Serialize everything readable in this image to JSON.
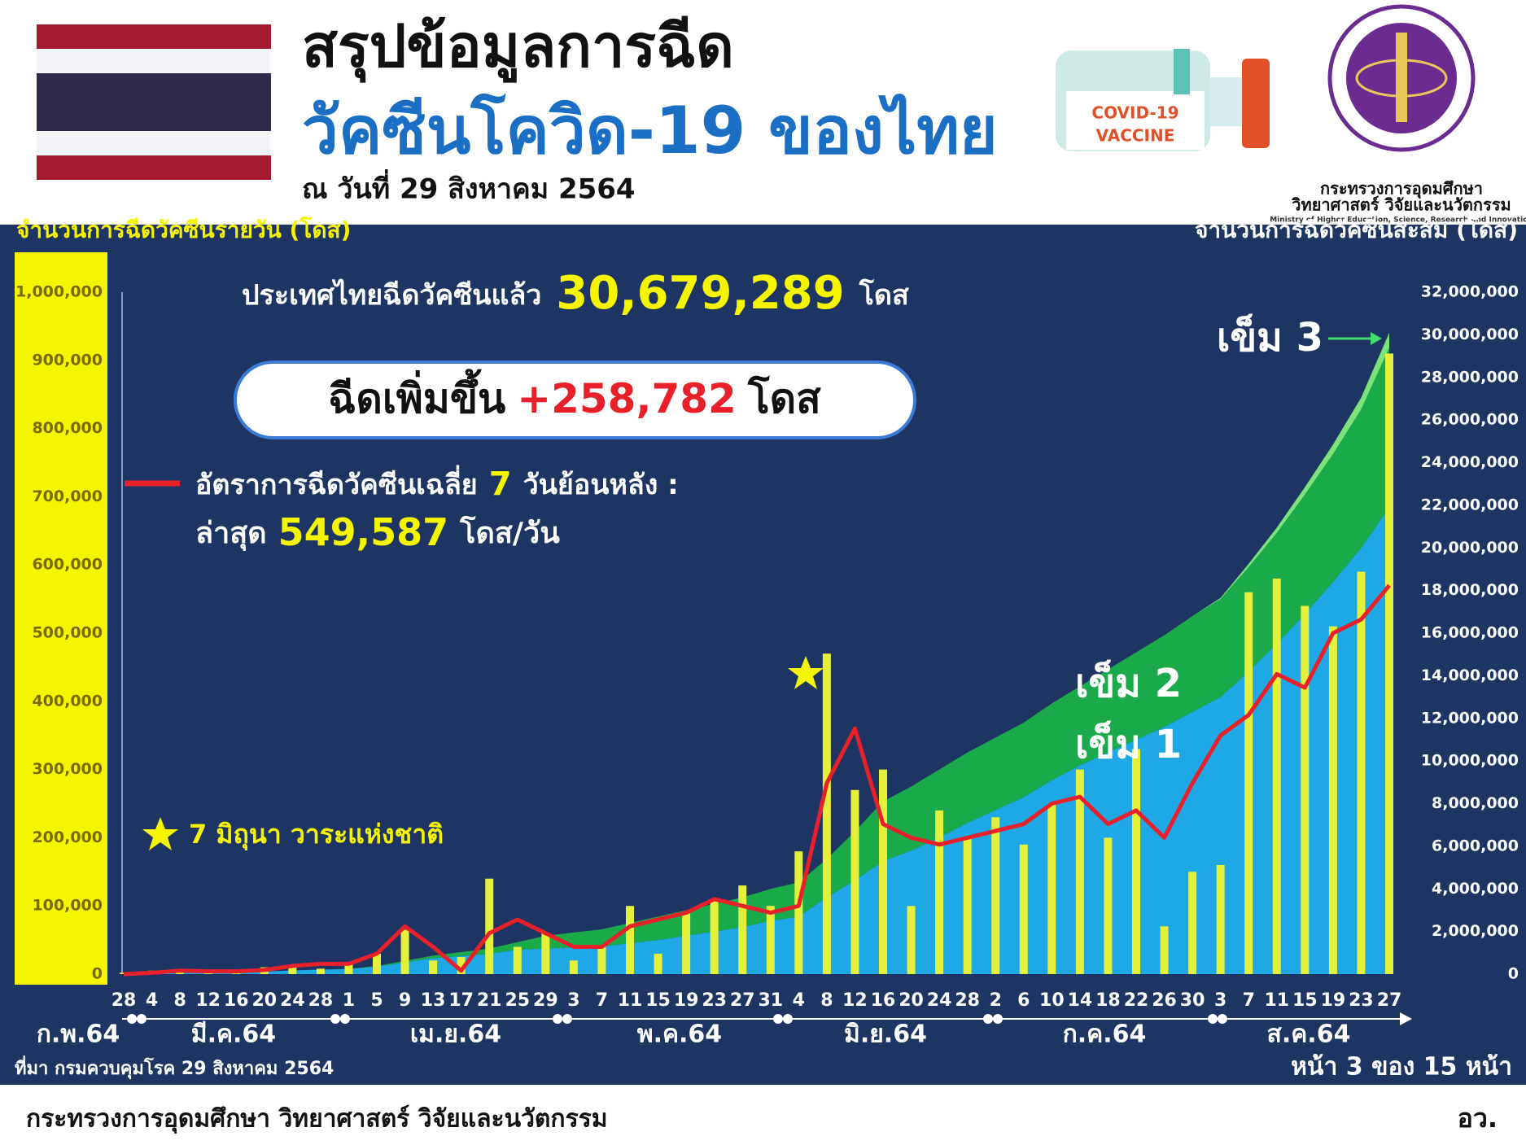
{
  "header": {
    "title_line1": "สรุปข้อมูลการฉีด",
    "title_line2": "วัคซีนโควิด-19 ของไทย",
    "date": "ณ วันที่ 29 สิงหาคม 2564",
    "vaccine_label1": "COVID-19",
    "vaccine_label2": "VACCINE",
    "logo_line1": "กระทรวงการอุดมศึกษา",
    "logo_line2": "วิทยาศาสตร์ วิจัยและนวัตกรรม",
    "logo_line3": "Ministry of Higher Education, Science, Research and Innovation"
  },
  "chart_data": {
    "type": "bar",
    "ylabel": "จำนวนการฉีดวัคซีนรายวัน (โดส)",
    "y2label": "จำนวนการฉีดวัคซีนสะสม (โดส)",
    "categories": [
      "28",
      "4",
      "8",
      "12",
      "16",
      "20",
      "24",
      "28",
      "1",
      "5",
      "9",
      "13",
      "17",
      "21",
      "25",
      "29",
      "3",
      "7",
      "11",
      "15",
      "19",
      "23",
      "27",
      "31",
      "4",
      "8",
      "12",
      "16",
      "20",
      "24",
      "28",
      "2",
      "6",
      "10",
      "14",
      "18",
      "22",
      "26",
      "30",
      "3",
      "7",
      "11",
      "15",
      "19",
      "23",
      "27"
    ],
    "months": [
      "ก.พ.64",
      "มี.ค.64",
      "เม.ย.64",
      "พ.ค.64",
      "มิ.ย.64",
      "ก.ค.64",
      "ส.ค.64"
    ],
    "bars": {
      "color": "#e4f03a",
      "values": [
        2000,
        5000,
        3000,
        3000,
        5000,
        10000,
        12000,
        8000,
        15000,
        30000,
        65000,
        20000,
        25000,
        140000,
        40000,
        60000,
        20000,
        40000,
        100000,
        30000,
        90000,
        110000,
        130000,
        100000,
        180000,
        470000,
        270000,
        300000,
        100000,
        240000,
        200000,
        230000,
        190000,
        250000,
        300000,
        200000,
        330000,
        70000,
        150000,
        160000,
        560000,
        580000,
        540000,
        510000,
        590000,
        910000
      ]
    },
    "average": {
      "color": "#e8202a",
      "values": [
        0,
        2000,
        5000,
        4000,
        4000,
        6000,
        12000,
        15000,
        15000,
        30000,
        70000,
        40000,
        5000,
        60000,
        80000,
        60000,
        40000,
        40000,
        70000,
        80000,
        90000,
        110000,
        100000,
        90000,
        100000,
        280000,
        360000,
        220000,
        200000,
        190000,
        200000,
        210000,
        220000,
        250000,
        260000,
        220000,
        240000,
        200000,
        280000,
        350000,
        380000,
        440000,
        420000,
        500000,
        520000,
        570000
      ]
    },
    "series": [
      {
        "name": "เข็ม 1",
        "color": "#1ea8e6",
        "axis": "y2",
        "values": [
          0,
          30000,
          50000,
          70000,
          90000,
          120000,
          170000,
          210000,
          240000,
          350000,
          550000,
          750000,
          850000,
          950000,
          1150000,
          1200000,
          1250000,
          1300000,
          1450000,
          1600000,
          1800000,
          2000000,
          2200000,
          2500000,
          2700000,
          3600000,
          4400000,
          5300000,
          5800000,
          6400000,
          7100000,
          7700000,
          8300000,
          9100000,
          9800000,
          10400000,
          11000000,
          11600000,
          12300000,
          13000000,
          14200000,
          15500000,
          16900000,
          18400000,
          20000000,
          21900000
        ]
      },
      {
        "name": "เข็ม 2",
        "color": "#1aaa4a",
        "axis": "y2",
        "values": [
          0,
          0,
          0,
          0,
          0,
          0,
          0,
          0,
          10000,
          30000,
          70000,
          120000,
          180000,
          250000,
          350000,
          600000,
          700000,
          800000,
          950000,
          1100000,
          1200000,
          1300000,
          1400000,
          1500000,
          1600000,
          1800000,
          2300000,
          2800000,
          3000000,
          3200000,
          3300000,
          3400000,
          3500000,
          3600000,
          3700000,
          3900000,
          4100000,
          4300000,
          4500000,
          4600000,
          4900000,
          5200000,
          5600000,
          6000000,
          6500000,
          7500000
        ]
      },
      {
        "name": "เข็ม 3",
        "color": "#7be37a",
        "axis": "y2",
        "values": [
          0,
          0,
          0,
          0,
          0,
          0,
          0,
          0,
          0,
          0,
          0,
          0,
          0,
          0,
          0,
          0,
          0,
          0,
          0,
          0,
          0,
          0,
          0,
          0,
          0,
          0,
          0,
          0,
          0,
          0,
          0,
          0,
          0,
          0,
          0,
          0,
          0,
          0,
          0,
          50000,
          150000,
          250000,
          350000,
          450000,
          550000,
          700000
        ]
      }
    ],
    "ylim": [
      0,
      1000000
    ],
    "yticks": [
      0,
      {
        "value": 100000,
        "label": "100,000"
      },
      {
        "value": 200000,
        "label": "200,000"
      },
      {
        "value": 300000,
        "label": "300,000"
      },
      {
        "value": 400000,
        "label": "400,000"
      },
      {
        "value": 500000,
        "label": "500,000"
      },
      {
        "value": 600000,
        "label": "600,000"
      },
      {
        "value": 700000,
        "label": "700,000"
      },
      {
        "value": 800000,
        "label": "800,000"
      },
      {
        "value": 900000,
        "label": "900,000"
      },
      {
        "value": 1000000,
        "label": "1,000,000"
      }
    ],
    "y2lim": [
      0,
      32000000
    ],
    "y2ticks": [
      0,
      {
        "value": 2000000,
        "label": "2,000,000"
      },
      {
        "value": 4000000,
        "label": "4,000,000"
      },
      {
        "value": 6000000,
        "label": "6,000,000"
      },
      {
        "value": 8000000,
        "label": "8,000,000"
      },
      {
        "value": 10000000,
        "label": "10,000,000"
      },
      {
        "value": 12000000,
        "label": "12,000,000"
      },
      {
        "value": 14000000,
        "label": "14,000,000"
      },
      {
        "value": 16000000,
        "label": "16,000,000"
      },
      {
        "value": 18000000,
        "label": "18,000,000"
      },
      {
        "value": 20000000,
        "label": "20,000,000"
      },
      {
        "value": 22000000,
        "label": "22,000,000"
      },
      {
        "value": 24000000,
        "label": "24,000,000"
      },
      {
        "value": 26000000,
        "label": "26,000,000"
      },
      {
        "value": 28000000,
        "label": "28,000,000"
      },
      {
        "value": 30000000,
        "label": "30,000,000"
      },
      {
        "value": 32000000,
        "label": "32,000,000"
      }
    ],
    "annotations": {
      "total_prefix": "ประเทศไทยฉีดวัคซีนแล้ว",
      "total_value": "30,679,289",
      "total_unit": "โดส",
      "increase_prefix": "ฉีดเพิ่มขึ้น",
      "increase_value": "+258,782",
      "increase_unit": "โดส",
      "average_label": "อัตราการฉีดวัคซีนเฉลี่ย",
      "average_days": "7",
      "average_suffix": "วันย้อนหลัง :",
      "latest_prefix": "ล่าสุด",
      "latest_value": "549,587",
      "latest_unit": "โดส/วัน",
      "star_note": "7 มิถุนา วาระแห่งชาติ"
    }
  },
  "footer": {
    "source": "ที่มา กรมควบคุมโรค 29 สิงหาคม 2564",
    "page": "หน้า 3 ของ 15 หน้า",
    "ministry": "กระทรวงการอุดมศึกษา วิทยาศาสตร์ วิจัยและนวัตกรรม",
    "abbr": "อว."
  }
}
